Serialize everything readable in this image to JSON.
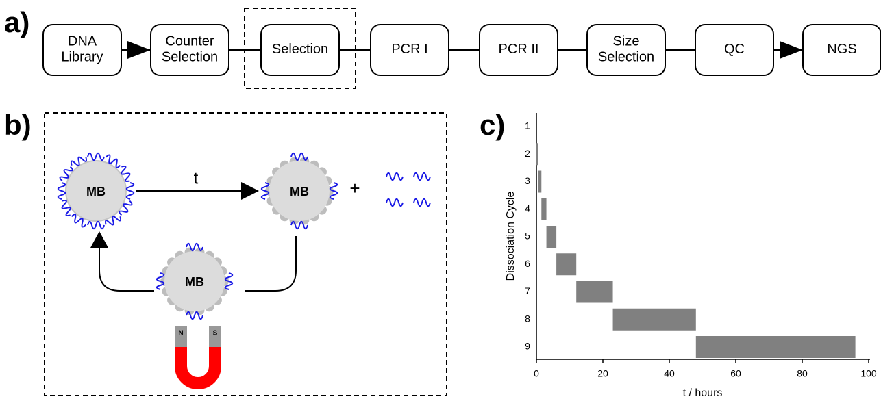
{
  "panel_a": {
    "label": "a)",
    "steps": [
      [
        "DNA",
        "Library"
      ],
      [
        "Counter",
        "Selection"
      ],
      [
        "Selection"
      ],
      [
        "PCR I"
      ],
      [
        "PCR II"
      ],
      [
        "Size",
        "Selection"
      ],
      [
        "QC"
      ],
      [
        "NGS"
      ]
    ]
  },
  "panel_b": {
    "label": "b)",
    "beads": [
      "MB",
      "MB",
      "MB"
    ],
    "time_label": "t",
    "plus": "+",
    "magnet_poles": [
      "N",
      "S"
    ]
  },
  "chart_data": {
    "type": "floating-bar",
    "label": "c)",
    "xlabel": "t / hours",
    "ylabel": "Dissociation Cycle",
    "categories": [
      "1",
      "2",
      "3",
      "4",
      "5",
      "6",
      "7",
      "8",
      "9"
    ],
    "start": [
      null,
      0,
      0.5,
      1.5,
      3,
      6,
      12,
      23,
      48
    ],
    "end": [
      null,
      0.5,
      1.5,
      3,
      6,
      12,
      23,
      48,
      96
    ],
    "color": "#808080",
    "xlim": [
      0,
      100
    ],
    "xticks": [
      0,
      20,
      40,
      60,
      80,
      100
    ]
  }
}
